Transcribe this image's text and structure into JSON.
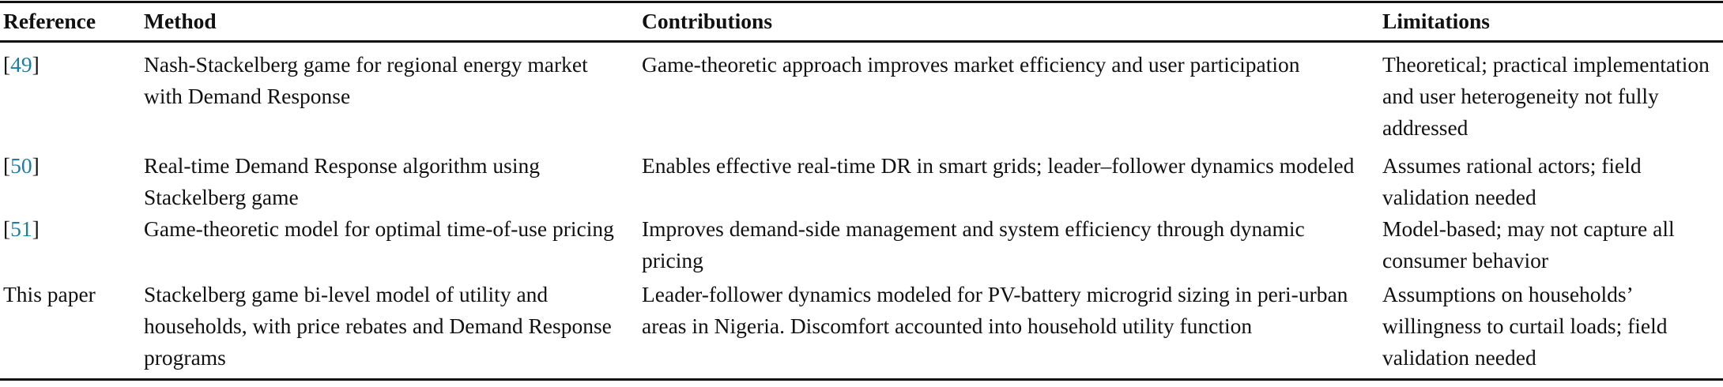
{
  "table": {
    "headers": [
      "Reference",
      "Method",
      "Contributions",
      "Limitations"
    ],
    "link_color": "#1b7ea6",
    "rows": [
      {
        "ref_open": "[",
        "ref_num": "49",
        "ref_close": "]",
        "ref_text": "",
        "method": "Nash-Stackelberg game for regional energy market with Demand Response",
        "contributions": "Game-theoretic approach improves market efficiency and user participation",
        "limitations": "Theoretical; practical implementation and user heterogeneity not fully addressed"
      },
      {
        "ref_open": "[",
        "ref_num": "50",
        "ref_close": "]",
        "ref_text": "",
        "method": "Real-time Demand Response algorithm using Stackelberg game",
        "contributions": "Enables effective real-time DR in smart grids; leader–follower dynamics modeled",
        "limitations": "Assumes rational actors; field validation needed"
      },
      {
        "ref_open": "[",
        "ref_num": "51",
        "ref_close": "]",
        "ref_text": "",
        "method": "Game-theoretic model for optimal time-of-use pricing",
        "contributions": "Improves demand-side management and system efficiency through dynamic pricing",
        "limitations": "Model-based; may not capture all consumer behavior"
      },
      {
        "ref_open": "",
        "ref_num": "",
        "ref_close": "",
        "ref_text": "This paper",
        "method": "Stackelberg game bi-level model of utility and households, with price rebates and Demand Response programs",
        "contributions": "Leader-follower dynamics modeled for PV-battery microgrid sizing in peri-urban areas in Nigeria. Discomfort accounted into household utility function",
        "limitations": "Assumptions on households’ willingness to curtail loads; field validation needed"
      }
    ]
  }
}
